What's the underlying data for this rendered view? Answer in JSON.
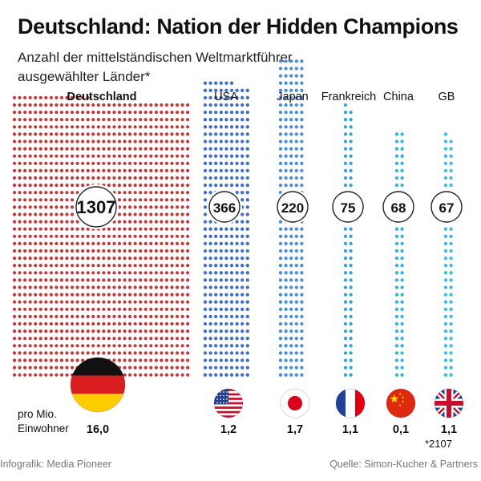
{
  "header": {
    "title": "Deutschland: Nation der Hidden Champions",
    "subtitle_line1": "Anzahl der mittelständischen Weltmarktführer",
    "subtitle_line2": "ausgewählter Länder*"
  },
  "per_capita_label_line1": "pro Mio.",
  "per_capita_label_line2": "Einwohner",
  "footnote": "*2107",
  "footer": {
    "source_left": "Infografik: Media Pioneer",
    "source_right": "Quelle: Simon-Kucher & Partners"
  },
  "flag_icons": [
    "flag-germany",
    "flag-usa",
    "flag-japan",
    "flag-france",
    "flag-china",
    "flag-uk"
  ],
  "colors": {
    "Deutschland": "#c0393b",
    "USA": "#3f6fc4",
    "Japan": "#4a8fd6",
    "Frankreich": "#3aa0d8",
    "China": "#35b3de",
    "GB": "#3cbde0"
  },
  "chart_data": {
    "type": "dot-matrix",
    "categories": [
      "Deutschland",
      "USA",
      "Japan",
      "Frankreich",
      "China",
      "GB"
    ],
    "values": [
      1307,
      366,
      220,
      75,
      68,
      67
    ],
    "value_labels": [
      "1307",
      "366",
      "220",
      "75",
      "68",
      "67"
    ],
    "per_million_inhabitants": [
      "16,0",
      "1,2",
      "1,7",
      "1,1",
      "0,1",
      "1,1"
    ],
    "title": "Deutschland: Nation der Hidden Champions",
    "subtitle": "Anzahl der mittelständischen Weltmarktführer ausgewählter Länder*"
  }
}
